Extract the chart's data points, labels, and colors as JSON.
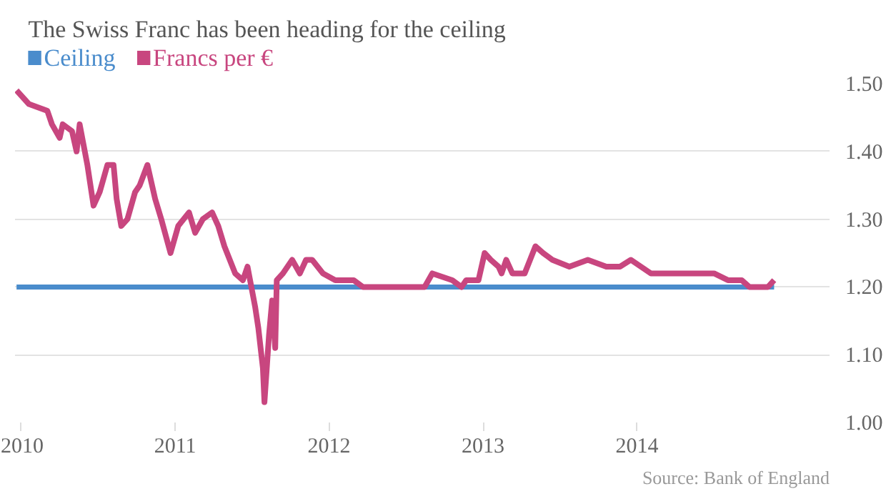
{
  "chart_data": {
    "type": "line",
    "title": "The Swiss Franc has been heading for the ceiling",
    "series": [
      {
        "name": "Ceiling",
        "color": "#4a8ccc",
        "x": [
          2009.97,
          2014.89
        ],
        "values": [
          1.2,
          1.2
        ]
      },
      {
        "name": "Francs per €",
        "color": "#c8467f",
        "x": [
          2009.97,
          2010.05,
          2010.17,
          2010.2,
          2010.25,
          2010.27,
          2010.33,
          2010.36,
          2010.38,
          2010.43,
          2010.47,
          2010.51,
          2010.56,
          2010.6,
          2010.62,
          2010.65,
          2010.69,
          2010.74,
          2010.77,
          2010.82,
          2010.87,
          2010.91,
          2010.97,
          2011.02,
          2011.09,
          2011.13,
          2011.18,
          2011.24,
          2011.28,
          2011.32,
          2011.39,
          2011.44,
          2011.47,
          2011.52,
          2011.54,
          2011.57,
          2011.58,
          2011.61,
          2011.63,
          2011.65,
          2011.66,
          2011.7,
          2011.76,
          2011.81,
          2011.85,
          2011.89,
          2011.96,
          2012.04,
          2012.16,
          2012.22,
          2012.36,
          2012.62,
          2012.67,
          2012.8,
          2012.86,
          2012.89,
          2012.97,
          2013.01,
          2013.05,
          2013.1,
          2013.12,
          2013.15,
          2013.19,
          2013.27,
          2013.34,
          2013.39,
          2013.45,
          2013.56,
          2013.68,
          2013.8,
          2013.89,
          2013.96,
          2014.09,
          2014.26,
          2014.5,
          2014.59,
          2014.68,
          2014.73,
          2014.85,
          2014.89
        ],
        "values": [
          1.49,
          1.47,
          1.46,
          1.44,
          1.42,
          1.44,
          1.43,
          1.4,
          1.44,
          1.38,
          1.32,
          1.34,
          1.38,
          1.38,
          1.33,
          1.29,
          1.3,
          1.34,
          1.35,
          1.38,
          1.33,
          1.3,
          1.25,
          1.29,
          1.31,
          1.28,
          1.3,
          1.31,
          1.29,
          1.26,
          1.22,
          1.21,
          1.23,
          1.17,
          1.14,
          1.08,
          1.03,
          1.13,
          1.18,
          1.11,
          1.21,
          1.22,
          1.24,
          1.22,
          1.24,
          1.24,
          1.22,
          1.21,
          1.21,
          1.2,
          1.2,
          1.2,
          1.22,
          1.21,
          1.2,
          1.21,
          1.21,
          1.25,
          1.24,
          1.23,
          1.22,
          1.24,
          1.22,
          1.22,
          1.26,
          1.25,
          1.24,
          1.23,
          1.24,
          1.23,
          1.23,
          1.24,
          1.22,
          1.22,
          1.22,
          1.21,
          1.21,
          1.2,
          1.2,
          1.21
        ]
      }
    ],
    "xlim": [
      2009.96,
      2015.25
    ],
    "xticks": [
      2010,
      2011,
      2012,
      2013,
      2014
    ],
    "ylim": [
      1.0,
      1.5
    ],
    "yticks": [
      {
        "value": 1.0,
        "label": "1.00"
      },
      {
        "value": 1.1,
        "label": "1.10"
      },
      {
        "value": 1.2,
        "label": "1.20"
      },
      {
        "value": 1.3,
        "label": "1.30"
      },
      {
        "value": 1.4,
        "label": "1.40"
      },
      {
        "value": 1.5,
        "label": "1.50"
      }
    ],
    "grid": "y",
    "legend": "top left",
    "line_style": "solid",
    "marker": "none",
    "annotations": [
      "Source: Bank of England"
    ]
  }
}
